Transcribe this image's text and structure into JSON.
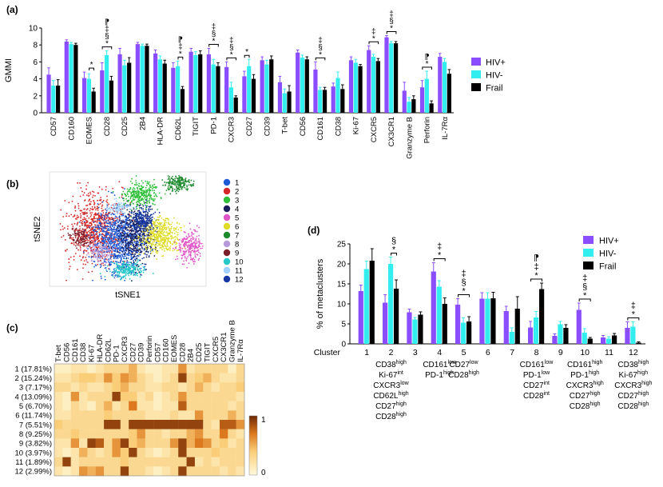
{
  "colors": {
    "hiv_pos": "#8a4dff",
    "hiv_neg": "#33eeee",
    "frail": "#000000",
    "axis": "#000000"
  },
  "chart_data": [
    {
      "panel": "(a)",
      "type": "bar",
      "ylabel": "GMMI",
      "ylim": [
        0,
        10
      ],
      "yticks": [
        0,
        2,
        4,
        6,
        8,
        10
      ],
      "categories": [
        "CD57",
        "CD160",
        "EOMES",
        "CD28",
        "CD25",
        "2B4",
        "HLA-DR",
        "CD62L",
        "TIGIT",
        "PD-1",
        "CXCR3",
        "CD27",
        "CD39",
        "T-bet",
        "CD56",
        "CD161",
        "CD38",
        "Ki-67",
        "CXCR5",
        "CX3CR1",
        "Granzyme B",
        "Perforin",
        "IL-7Rα"
      ],
      "series": [
        {
          "name": "HIV+",
          "values": [
            4.5,
            8.4,
            4.1,
            5.0,
            6.9,
            8.1,
            7.0,
            5.3,
            7.2,
            6.9,
            5.4,
            4.3,
            6.2,
            3.6,
            7.1,
            5.1,
            3.1,
            6.2,
            7.4,
            8.9,
            2.6,
            3.0,
            6.6
          ],
          "errors": [
            0.8,
            0.2,
            0.7,
            0.9,
            0.7,
            0.2,
            0.4,
            0.6,
            0.4,
            0.7,
            0.6,
            0.6,
            0.4,
            0.7,
            0.3,
            0.9,
            0.4,
            0.4,
            0.5,
            0.2,
            1.0,
            0.8,
            0.4
          ]
        },
        {
          "name": "HIV-",
          "values": [
            3.2,
            8.1,
            4.0,
            6.8,
            5.6,
            7.9,
            6.3,
            5.5,
            6.8,
            5.7,
            3.0,
            5.5,
            5.7,
            2.3,
            6.5,
            2.7,
            4.1,
            5.9,
            6.6,
            8.2,
            1.3,
            4.0,
            6.0
          ],
          "errors": [
            0.6,
            0.2,
            0.6,
            0.5,
            0.6,
            0.2,
            0.4,
            0.6,
            0.4,
            0.6,
            0.6,
            0.8,
            0.5,
            0.5,
            0.3,
            0.3,
            0.7,
            0.4,
            0.3,
            0.2,
            0.5,
            0.9,
            0.4
          ]
        },
        {
          "name": "Frail",
          "values": [
            3.2,
            8.0,
            2.5,
            3.8,
            5.9,
            7.9,
            5.8,
            2.8,
            6.9,
            5.5,
            1.8,
            4.0,
            6.3,
            2.5,
            6.3,
            2.7,
            2.8,
            5.5,
            6.1,
            8.2,
            1.6,
            1.1,
            4.6
          ],
          "errors": [
            0.7,
            0.2,
            0.4,
            0.5,
            0.6,
            0.2,
            0.4,
            0.3,
            0.4,
            0.4,
            0.2,
            0.5,
            0.4,
            0.7,
            0.3,
            0.3,
            0.5,
            0.2,
            0.3,
            0.2,
            0.4,
            0.3,
            0.5
          ]
        }
      ],
      "annotations": [
        {
          "category": "EOMES",
          "pair": "23",
          "symbols": [
            "*"
          ]
        },
        {
          "category": "CD28",
          "pair": "13",
          "symbols": [
            "*",
            "§",
            "‡",
            "⁋"
          ]
        },
        {
          "category": "CD62L",
          "pair": "23",
          "symbols": [
            "*",
            "‡",
            "⁋"
          ]
        },
        {
          "category": "PD-1",
          "pair": "13",
          "symbols": [
            "*",
            "§",
            "‡"
          ]
        },
        {
          "category": "CXCR3",
          "pair": "13",
          "symbols": [
            "*",
            "§",
            "‡"
          ]
        },
        {
          "category": "CD27",
          "pair": "12",
          "symbols": [
            "*"
          ]
        },
        {
          "category": "CD161",
          "pair": "13",
          "symbols": [
            "*",
            "§",
            "‡"
          ]
        },
        {
          "category": "CXCR5",
          "pair": "13",
          "symbols": [
            "*",
            "‡"
          ]
        },
        {
          "category": "CX3CR1",
          "pair": "13",
          "symbols": [
            "*",
            "§",
            "‡"
          ]
        },
        {
          "category": "Perforin",
          "pair": "13",
          "symbols": [
            "*",
            "⁋"
          ]
        }
      ],
      "legend": [
        "HIV+",
        "HIV-",
        "Frail"
      ]
    },
    {
      "panel": "(b)",
      "type": "scatter",
      "xlabel": "tSNE1",
      "ylabel": "tSNE2",
      "clusters": [
        "1",
        "2",
        "3",
        "4",
        "5",
        "6",
        "7",
        "8",
        "9",
        "10",
        "11",
        "12"
      ],
      "cluster_colors": [
        "#1e5ad6",
        "#d62828",
        "#2fbf3a",
        "#1a1f5c",
        "#e055c8",
        "#e0dd2a",
        "#1f8a2f",
        "#b79ad9",
        "#7a1f2a",
        "#27c8c8",
        "#9fd0ff",
        "#1636a0"
      ]
    },
    {
      "panel": "(c)",
      "type": "heatmap",
      "columns": [
        "T-bet",
        "CD56",
        "CD161",
        "CD38",
        "Ki-67",
        "HLA-DR",
        "CD62L",
        "PD-1",
        "CXCR3",
        "CD27",
        "CD39",
        "Perforin",
        "CD57",
        "CD160",
        "EOMES",
        "CD28",
        "2B4",
        "CD25",
        "TIGIT",
        "CXCR5",
        "CX3CR1",
        "Granzyme B",
        "IL-7Rα"
      ],
      "rows": [
        "1 (17.81%)",
        "2 (15.24%)",
        "3 (7.17%)",
        "4 (13.09%)",
        "5 (6.70%)",
        "6 (11.74%)",
        "7 (5.51%)",
        "8 (9.25%)",
        "9 (3.82%)",
        "10 (3.97%)",
        "11 (1.89%)",
        "12 (2.99%)"
      ],
      "colorbar": {
        "min": 0,
        "max": 1,
        "min_label": "0",
        "max_label": "1"
      },
      "values": [
        [
          0.1,
          0.1,
          0.2,
          0.2,
          0.1,
          0.2,
          0.3,
          0.3,
          0.3,
          0.5,
          0.2,
          0.1,
          0.1,
          0.2,
          0.2,
          0.6,
          0.2,
          0.3,
          0.3,
          0.3,
          0.3,
          0.1,
          0.3
        ],
        [
          0.2,
          0.2,
          0.3,
          0.4,
          0.4,
          0.3,
          0.6,
          0.4,
          0.6,
          0.5,
          0.3,
          0.2,
          0.1,
          0.2,
          0.3,
          0.9,
          0.3,
          0.4,
          0.5,
          0.3,
          0.2,
          0.2,
          0.3
        ],
        [
          0.3,
          0.3,
          0.2,
          0.3,
          0.2,
          0.2,
          0.3,
          0.4,
          0.5,
          0.3,
          0.3,
          0.2,
          0.2,
          0.3,
          0.3,
          0.2,
          0.3,
          0.5,
          0.3,
          0.2,
          0.3,
          0.3,
          0.4
        ],
        [
          0.2,
          0.1,
          0.6,
          0.2,
          0.3,
          0.3,
          0.3,
          0.9,
          0.4,
          0.4,
          0.2,
          0.3,
          0.1,
          0.2,
          0.3,
          0.6,
          0.3,
          0.3,
          0.3,
          0.3,
          0.3,
          0.3,
          0.2
        ],
        [
          0.2,
          0.1,
          0.3,
          0.2,
          0.1,
          0.3,
          0.5,
          0.2,
          0.3,
          0.7,
          0.2,
          0.2,
          0.1,
          0.2,
          0.2,
          0.8,
          0.3,
          0.3,
          0.3,
          0.3,
          0.3,
          0.2,
          0.3
        ],
        [
          0.2,
          0.2,
          0.3,
          0.3,
          0.3,
          0.3,
          0.4,
          0.3,
          0.3,
          0.3,
          0.3,
          0.2,
          0.2,
          0.2,
          0.3,
          0.2,
          0.2,
          0.6,
          0.3,
          0.3,
          0.3,
          0.5,
          0.3
        ],
        [
          0.4,
          0.3,
          0.3,
          0.3,
          0.3,
          0.3,
          0.9,
          0.9,
          0.3,
          0.9,
          0.9,
          0.9,
          0.9,
          0.9,
          0.9,
          0.9,
          0.9,
          0.9,
          0.3,
          0.2,
          0.8,
          0.8,
          0.6
        ],
        [
          0.3,
          0.3,
          0.4,
          0.3,
          0.3,
          0.3,
          0.3,
          0.3,
          0.3,
          0.4,
          0.6,
          0.3,
          0.3,
          0.2,
          0.3,
          0.3,
          0.5,
          0.6,
          0.3,
          0.3,
          0.7,
          0.3,
          0.2
        ],
        [
          0.2,
          0.2,
          0.6,
          0.2,
          0.9,
          0.8,
          0.3,
          0.6,
          0.9,
          0.4,
          0.5,
          0.3,
          0.3,
          0.3,
          0.6,
          0.9,
          0.5,
          0.7,
          0.6,
          0.3,
          0.4,
          0.2,
          0.3
        ],
        [
          0.2,
          0.1,
          0.2,
          0.5,
          0.3,
          0.2,
          0.3,
          0.6,
          0.4,
          0.9,
          0.3,
          0.2,
          0.1,
          0.2,
          0.3,
          0.9,
          0.3,
          0.3,
          0.3,
          0.4,
          0.3,
          0.3,
          0.3
        ],
        [
          0.3,
          0.9,
          0.2,
          0.3,
          0.3,
          0.3,
          0.3,
          0.3,
          0.4,
          0.3,
          0.3,
          0.3,
          0.3,
          0.3,
          0.3,
          0.3,
          0.9,
          0.2,
          0.3,
          0.2,
          0.3,
          0.3,
          0.3
        ],
        [
          0.2,
          0.1,
          0.2,
          0.6,
          0.5,
          0.6,
          0.3,
          0.3,
          0.9,
          0.3,
          0.3,
          0.2,
          0.1,
          0.2,
          0.3,
          0.9,
          0.3,
          0.3,
          0.3,
          0.3,
          0.2,
          0.3,
          0.2
        ]
      ]
    },
    {
      "panel": "(d)",
      "type": "bar",
      "ylabel": "% of metaclusters",
      "ylim": [
        0,
        25
      ],
      "yticks": [
        0,
        5,
        10,
        15,
        20,
        25
      ],
      "xaxis_title": "Cluster",
      "categories": [
        "1",
        "2",
        "3",
        "4",
        "5",
        "6",
        "7",
        "8",
        "9",
        "10",
        "11",
        "12"
      ],
      "series": [
        {
          "name": "HIV+",
          "values": [
            13.2,
            10.3,
            7.9,
            18.1,
            9.8,
            11.3,
            8.2,
            4.1,
            2.0,
            8.5,
            1.6,
            4.0
          ],
          "errors": [
            1.5,
            2.0,
            0.8,
            2.2,
            1.5,
            1.5,
            1.2,
            1.5,
            0.5,
            1.7,
            0.5,
            1.5
          ]
        },
        {
          "name": "HIV-",
          "values": [
            18.7,
            20.0,
            6.1,
            14.3,
            5.3,
            11.3,
            3.0,
            6.6,
            4.9,
            2.8,
            1.3,
            4.3
          ],
          "errors": [
            2.0,
            1.7,
            0.5,
            1.5,
            1.2,
            1.5,
            1.0,
            1.5,
            0.7,
            1.0,
            0.5,
            1.2
          ]
        },
        {
          "name": "Frail",
          "values": [
            20.8,
            13.8,
            7.3,
            10.0,
            5.6,
            11.4,
            8.8,
            13.7,
            4.0,
            1.3,
            2.1,
            0.3
          ],
          "errors": [
            3.0,
            2.2,
            0.7,
            1.5,
            1.2,
            1.5,
            3.0,
            1.5,
            0.8,
            0.3,
            0.5,
            0.2
          ]
        }
      ],
      "annotations": [
        {
          "category": "2",
          "pair": "23",
          "symbols": [
            "*",
            "§"
          ]
        },
        {
          "category": "4",
          "pair": "13",
          "symbols": [
            "*",
            "‡"
          ]
        },
        {
          "category": "5",
          "pair": "13",
          "symbols": [
            "*",
            "§",
            "‡"
          ]
        },
        {
          "category": "8",
          "pair": "13",
          "symbols": [
            "*",
            "‡",
            "⁋"
          ]
        },
        {
          "category": "10",
          "pair": "13",
          "symbols": [
            "*",
            "§",
            "‡"
          ]
        },
        {
          "category": "12",
          "pair": "13",
          "symbols": [
            "*",
            "‡"
          ]
        }
      ],
      "descriptors": [
        {
          "cluster": "2",
          "lines": [
            [
              "CD38",
              "high"
            ],
            [
              "Ki-67",
              "int"
            ],
            [
              "CXCR3",
              "low"
            ],
            [
              "CD62L",
              "high"
            ],
            [
              "CD27",
              "high"
            ],
            [
              "CD28",
              "high"
            ]
          ]
        },
        {
          "cluster": "4",
          "lines": [
            [
              "CD161",
              "low"
            ],
            [
              "PD-1",
              "high"
            ]
          ]
        },
        {
          "cluster": "5",
          "lines": [
            [
              "CD27",
              "low"
            ],
            [
              "CD28",
              "high"
            ]
          ]
        },
        {
          "cluster": "8",
          "lines": [
            [
              "CD161",
              "low"
            ],
            [
              "PD-1",
              "low"
            ],
            [
              "CD27",
              "int"
            ],
            [
              "CD28",
              "int"
            ]
          ]
        },
        {
          "cluster": "10",
          "lines": [
            [
              "CD161",
              "high"
            ],
            [
              "PD-1",
              "high"
            ],
            [
              "CXCR3",
              "high"
            ],
            [
              "CD27",
              "high"
            ],
            [
              "CD28",
              "high"
            ]
          ]
        },
        {
          "cluster": "12",
          "lines": [
            [
              "CD38",
              "high"
            ],
            [
              "Ki-67",
              "high"
            ],
            [
              "CXCR3",
              "high"
            ],
            [
              "CD27",
              "high"
            ],
            [
              "CD28",
              "high"
            ]
          ]
        }
      ],
      "legend": [
        "HIV+",
        "HIV-",
        "Frail"
      ]
    }
  ]
}
